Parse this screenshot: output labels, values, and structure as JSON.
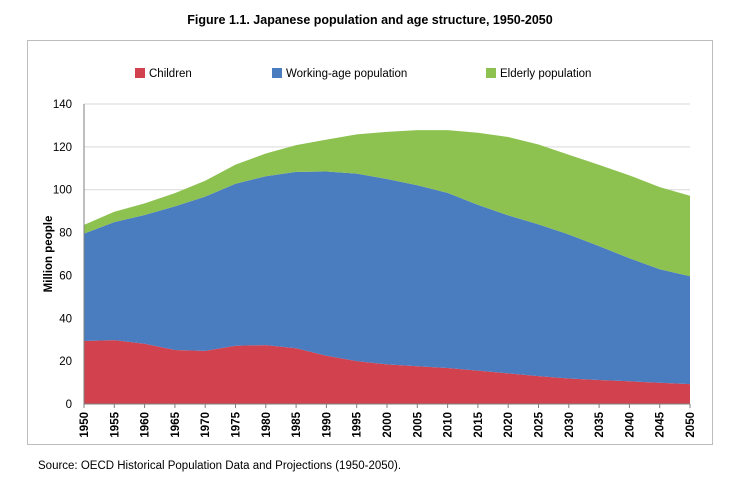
{
  "title": "Figure 1.1. Japanese population and age structure, 1950-2050",
  "source": "Source: OECD Historical Population Data and Projections (1950-2050).",
  "chart_data": {
    "type": "area",
    "stacked": true,
    "title": "Figure 1.1. Japanese population and age structure, 1950-2050",
    "xlabel": "",
    "ylabel": "Million people",
    "ylim": [
      0,
      140
    ],
    "yticks": [
      "0",
      "20",
      "40",
      "60",
      "80",
      "100",
      "120",
      "140"
    ],
    "grid": true,
    "legend_position": "top",
    "x": [
      "1950",
      "1955",
      "1960",
      "1965",
      "1970",
      "1975",
      "1980",
      "1985",
      "1990",
      "1995",
      "2000",
      "2005",
      "2010",
      "2015",
      "2020",
      "2025",
      "2030",
      "2035",
      "2040",
      "2045",
      "2050"
    ],
    "series": [
      {
        "name": "Children",
        "color": "#d2424e",
        "values": [
          29.4,
          29.8,
          28.1,
          25.2,
          24.8,
          27.2,
          27.5,
          26.0,
          22.5,
          20.0,
          18.5,
          17.6,
          16.8,
          15.6,
          14.3,
          13.0,
          11.9,
          11.2,
          10.6,
          9.9,
          9.3
        ]
      },
      {
        "name": "Working-age population",
        "color": "#4a7cc0",
        "values": [
          50.1,
          55.1,
          60.1,
          67.0,
          72.0,
          75.6,
          78.8,
          82.3,
          86.0,
          87.5,
          86.5,
          84.5,
          81.7,
          77.3,
          73.7,
          70.8,
          67.2,
          62.5,
          57.4,
          53.0,
          50.3
        ]
      },
      {
        "name": "Elderly population",
        "color": "#8dc251",
        "values": [
          4.1,
          4.8,
          5.4,
          6.2,
          7.4,
          8.9,
          10.6,
          12.5,
          14.9,
          18.3,
          22.0,
          25.7,
          29.3,
          33.7,
          36.6,
          37.3,
          37.2,
          37.9,
          38.7,
          38.3,
          37.6
        ]
      }
    ]
  }
}
